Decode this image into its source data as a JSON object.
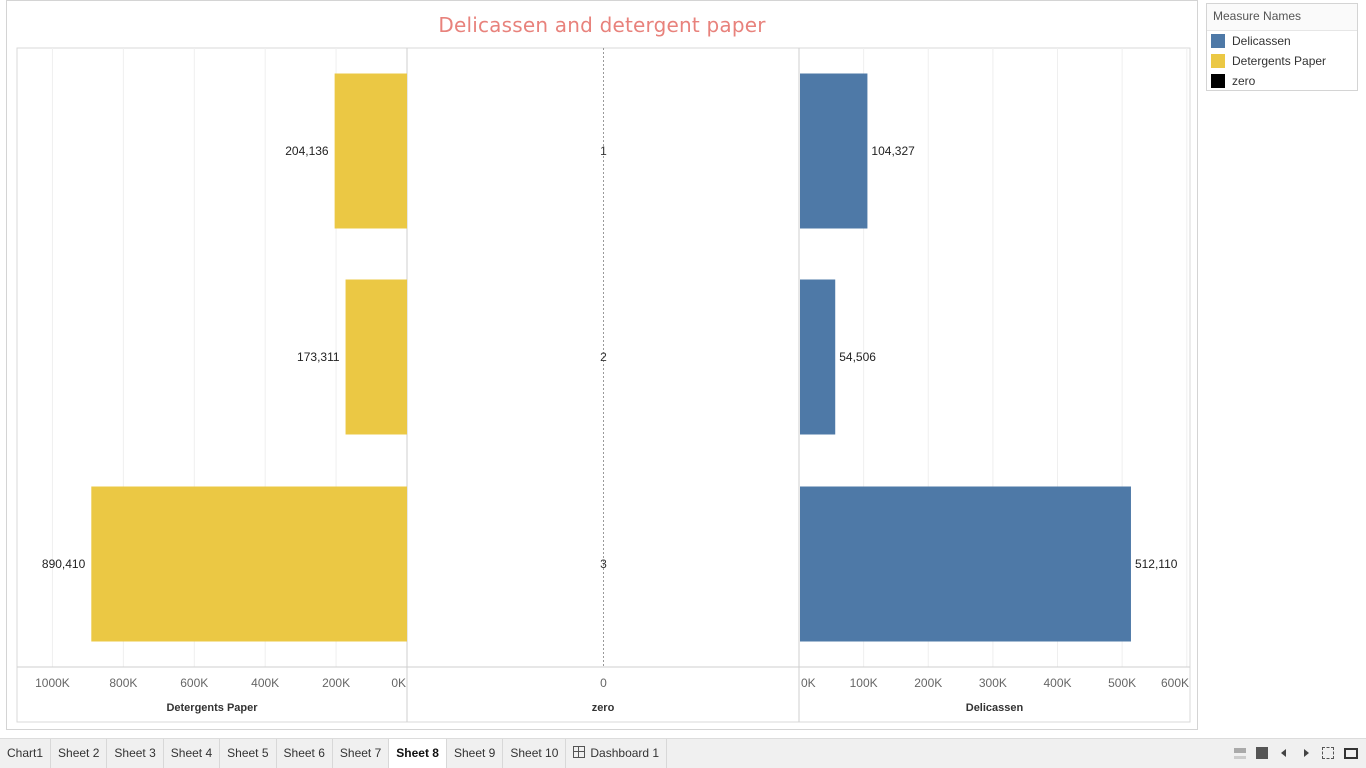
{
  "chart_data": {
    "type": "bar",
    "orientation": "horizontal",
    "title": "Delicassen and detergent paper",
    "categories": [
      "1",
      "2",
      "3"
    ],
    "panes": [
      {
        "measure": "Detergents Paper",
        "axis_label": "Detergents Paper",
        "reversed": true,
        "xlim": [
          0,
          1100000
        ],
        "ticks": [
          1000000,
          800000,
          600000,
          400000,
          200000,
          0
        ],
        "tick_labels": [
          "1000K",
          "800K",
          "600K",
          "400K",
          "200K",
          "0K"
        ],
        "values": [
          204136,
          173311,
          890410
        ],
        "value_labels": [
          "204,136",
          "173,311",
          "890,410"
        ],
        "color": "#EBC844"
      },
      {
        "measure": "zero",
        "axis_label": "zero",
        "ticks": [
          0
        ],
        "tick_labels": [
          "0"
        ],
        "values": [
          0,
          0,
          0
        ],
        "value_labels": [
          "1",
          "2",
          "3"
        ],
        "color": "#000000"
      },
      {
        "measure": "Delicassen",
        "axis_label": "Delicassen",
        "reversed": false,
        "xlim": [
          0,
          605000
        ],
        "ticks": [
          0,
          100000,
          200000,
          300000,
          400000,
          500000,
          600000
        ],
        "tick_labels": [
          "0K",
          "100K",
          "200K",
          "300K",
          "400K",
          "500K",
          "600K"
        ],
        "values": [
          104327,
          54506,
          512110
        ],
        "value_labels": [
          "104,327",
          "54,506",
          "512,110"
        ],
        "color": "#4E79A7"
      }
    ]
  },
  "legend": {
    "title": "Measure Names",
    "items": [
      {
        "label": "Delicassen",
        "color": "#4E79A7"
      },
      {
        "label": "Detergents Paper",
        "color": "#EBC844"
      },
      {
        "label": "zero",
        "color": "#000000"
      }
    ]
  },
  "tabs": [
    {
      "label": "Chart1",
      "active": false
    },
    {
      "label": "Sheet 2",
      "active": false
    },
    {
      "label": "Sheet 3",
      "active": false
    },
    {
      "label": "Sheet 4",
      "active": false
    },
    {
      "label": "Sheet 5",
      "active": false
    },
    {
      "label": "Sheet 6",
      "active": false
    },
    {
      "label": "Sheet 7",
      "active": false
    },
    {
      "label": "Sheet 8",
      "active": true
    },
    {
      "label": "Sheet 9",
      "active": false
    },
    {
      "label": "Sheet 10",
      "active": false
    },
    {
      "label": "Dashboard 1",
      "active": false,
      "icon": "dashboard-grid-icon"
    }
  ]
}
